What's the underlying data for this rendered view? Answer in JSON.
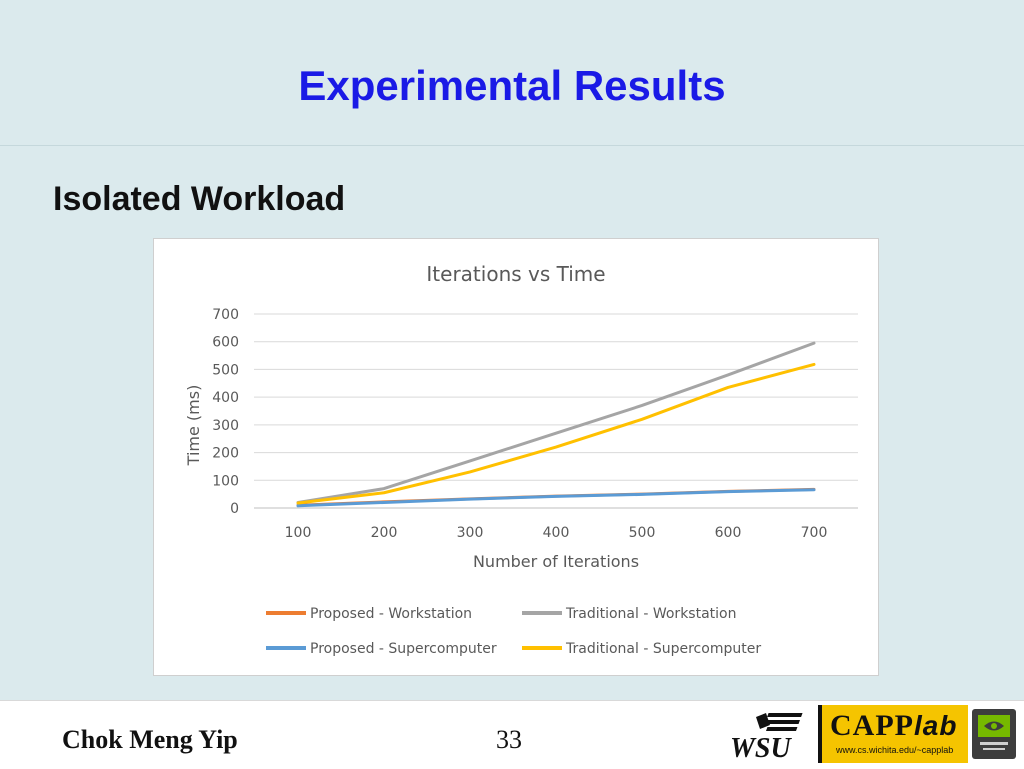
{
  "slide": {
    "title": "Experimental Results",
    "heading": "Isolated Workload"
  },
  "footer": {
    "author": "Chok Meng Yip",
    "page_number": "33",
    "capp_logo_text": "CAPP",
    "capp_logo_suffix": "lab",
    "capp_logo_url": "www.cs.wichita.edu/~capplab",
    "wsu_logo_text": "WSU"
  },
  "chart_data": {
    "type": "line",
    "title": "Iterations vs Time",
    "xlabel": "Number of Iterations",
    "ylabel": "Time (ms)",
    "x": [
      100,
      200,
      300,
      400,
      500,
      600,
      700
    ],
    "ylim": [
      0,
      700
    ],
    "yticks": [
      0,
      100,
      200,
      300,
      400,
      500,
      600,
      700
    ],
    "grid": true,
    "legend_position": "bottom",
    "series": [
      {
        "name": "Proposed - Workstation",
        "color": "#ed7d31",
        "values": [
          10,
          22,
          33,
          43,
          50,
          60,
          67
        ]
      },
      {
        "name": "Traditional - Workstation",
        "color": "#a5a5a5",
        "values": [
          20,
          70,
          170,
          270,
          370,
          480,
          595
        ]
      },
      {
        "name": "Proposed - Supercomputer",
        "color": "#5b9bd5",
        "values": [
          8,
          20,
          32,
          42,
          49,
          59,
          66
        ]
      },
      {
        "name": "Traditional - Supercomputer",
        "color": "#ffc000",
        "values": [
          18,
          55,
          130,
          220,
          320,
          435,
          518
        ]
      }
    ]
  }
}
